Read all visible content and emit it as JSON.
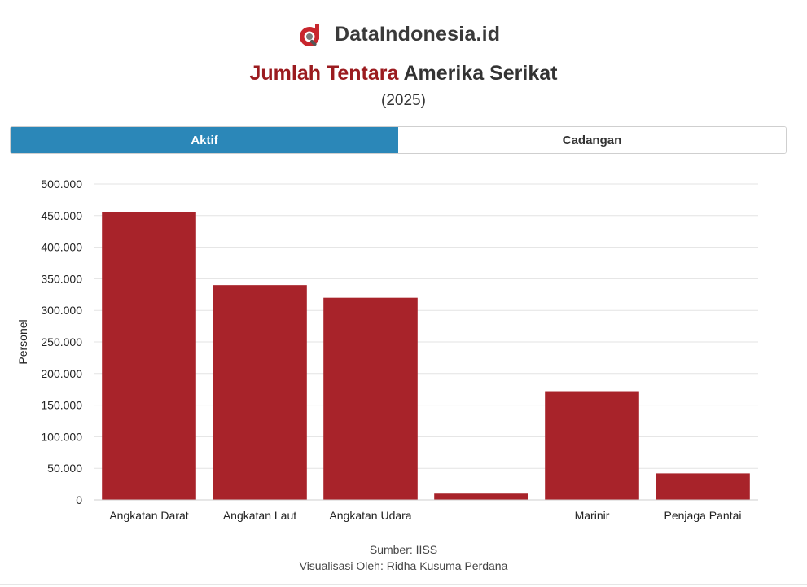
{
  "brand": {
    "name": "DataIndonesia.id",
    "logo_icon": "dataindonesia-logo-icon",
    "accent": "#9b1b1f"
  },
  "title": {
    "highlight": "Jumlah Tentara",
    "rest": "Amerika Serikat"
  },
  "subtitle": "(2025)",
  "tabs": [
    {
      "label": "Aktif",
      "active": true
    },
    {
      "label": "Cadangan",
      "active": false
    }
  ],
  "chart_data": {
    "type": "bar",
    "categories": [
      "Angkatan Darat",
      "Angkatan Laut",
      "Angkatan Udara",
      "",
      "Marinir",
      "Penjaga Pantai"
    ],
    "values": [
      455000,
      340000,
      320000,
      10000,
      172000,
      42000
    ],
    "ylabel": "Personel",
    "xlabel": "",
    "ylim": [
      0,
      500000
    ],
    "yticks": [
      0,
      50000,
      100000,
      150000,
      200000,
      250000,
      300000,
      350000,
      400000,
      450000,
      500000
    ],
    "ytick_labels": [
      "0",
      "50.000",
      "100.000",
      "150.000",
      "200.000",
      "250.000",
      "300.000",
      "350.000",
      "400.000",
      "450.000",
      "500.000"
    ],
    "grid": true,
    "bar_color": "#a8232a"
  },
  "footer": {
    "source": "Sumber: IISS",
    "credit": "Visualisasi Oleh: Ridha Kusuma Perdana"
  }
}
